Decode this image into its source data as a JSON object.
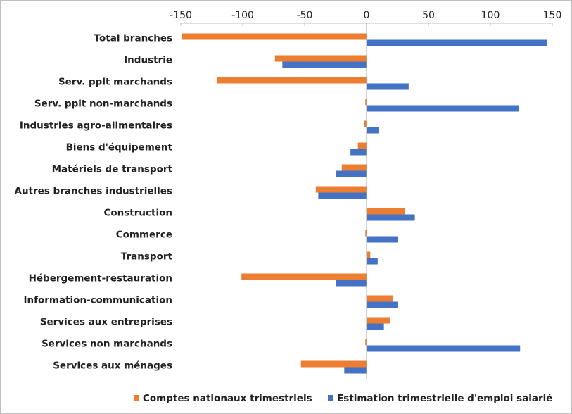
{
  "chart_data": {
    "type": "barh",
    "categories": [
      "Total branches",
      "Industrie",
      "Serv. pplt marchands",
      "Serv. pplt non-marchands",
      "Industries agro-alimentaires",
      "Biens d'équipement",
      "Matériels de transport",
      "Autres branches industrielles",
      "Construction",
      "Commerce",
      "Transport",
      "Hébergement-restauration",
      "Information-communication",
      "Services aux entreprises",
      "Services non marchands",
      "Services aux ménages"
    ],
    "series": [
      {
        "name": "Comptes nationaux trimestriels",
        "color": "#ed7d31",
        "values": [
          -149,
          -74,
          -121,
          -1,
          -2,
          -7,
          -20,
          -41,
          31,
          -1,
          3,
          -101,
          21,
          19,
          -1,
          -53
        ]
      },
      {
        "name": "Estimation trimestrielle d'emploi salarié",
        "color": "#4472c4",
        "values": [
          146,
          -68,
          34,
          123,
          10,
          -13,
          -25,
          -39,
          39,
          25,
          9,
          -25,
          25,
          14,
          124,
          -18
        ]
      }
    ],
    "xlim": [
      -150,
      150
    ],
    "xticks": [
      -150,
      -100,
      -50,
      0,
      50,
      100,
      150
    ],
    "grid": false,
    "legend": "bottom"
  }
}
